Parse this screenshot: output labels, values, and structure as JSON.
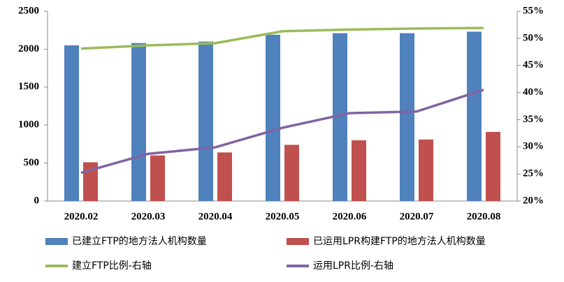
{
  "chart_data": {
    "type": "bar",
    "categories": [
      "2020.02",
      "2020.03",
      "2020.04",
      "2020.05",
      "2020.06",
      "2020.07",
      "2020.08"
    ],
    "series": [
      {
        "name": "已建立FTP的地方法人机构数量",
        "type": "bar",
        "color": "#4f81bd",
        "values": [
          2050,
          2080,
          2100,
          2190,
          2210,
          2210,
          2230
        ]
      },
      {
        "name": "已运用LPR构建FTP的地方法人机构数量",
        "type": "bar",
        "color": "#c0504d",
        "values": [
          510,
          600,
          640,
          740,
          800,
          810,
          910
        ]
      },
      {
        "name": "建立FTP比例-右轴",
        "type": "line",
        "axis": "y2",
        "color": "#9bbb59",
        "values": [
          48.1,
          48.7,
          49.1,
          51.3,
          51.6,
          51.8,
          51.9
        ]
      },
      {
        "name": "运用LPR比例-右轴",
        "type": "line",
        "axis": "y2",
        "color": "#8064a2",
        "values": [
          25.2,
          28.7,
          29.9,
          33.5,
          36.2,
          36.5,
          40.5
        ]
      }
    ],
    "ylim": [
      0,
      2500
    ],
    "yticks": [
      0,
      500,
      1000,
      1500,
      2000,
      2500
    ],
    "y2lim": [
      20,
      55
    ],
    "y2ticks": [
      {
        "value": 20,
        "label": "20%"
      },
      {
        "value": 25,
        "label": "25%"
      },
      {
        "value": 30,
        "label": "30%"
      },
      {
        "value": 35,
        "label": "35%"
      },
      {
        "value": 40,
        "label": "40%"
      },
      {
        "value": 45,
        "label": "45%"
      },
      {
        "value": 50,
        "label": "50%"
      },
      {
        "value": 55,
        "label": "55%"
      }
    ]
  }
}
